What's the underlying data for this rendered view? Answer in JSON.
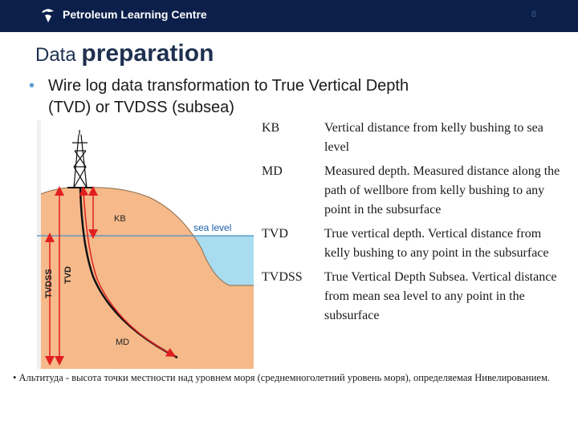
{
  "header": {
    "brand": "Petroleum Learning Centre",
    "slide_number": "8",
    "bg_color": "#0b1f4a"
  },
  "title": {
    "part1": "Data ",
    "part2": "preparation"
  },
  "bullet": {
    "line1": "Wire log data transformation to True Vertical Depth",
    "line2": "(TVD) or TVDSS (subsea)"
  },
  "diagram": {
    "sea_level_label": "sea level",
    "kb_label": "KB",
    "md_label": "MD",
    "tvdss_label": "TVDSS",
    "tvd_label": "TVD",
    "colors": {
      "land": "#f5b98a",
      "sea": "#a8dcee",
      "arrow": "#e02020",
      "wellbore": "#111111"
    }
  },
  "definitions": [
    {
      "term": "KB",
      "description": "Vertical distance from kelly bushing to sea level"
    },
    {
      "term": "MD",
      "description": "Measured depth. Measured distance along the path of wellbore from kelly bushing to any point in the subsurface"
    },
    {
      "term": "TVD",
      "description": "True vertical depth.  Vertical distance from kelly bushing to any point in the subsurface"
    },
    {
      "term": "TVDSS",
      "description": "True Vertical Depth Subsea. Vertical distance from mean sea level to any point in the subsurface"
    }
  ],
  "footnote": "• Альтитуда - высота точки местности над уровнем моря (среднемноголетний уровень моря), определяемая Нивелированием."
}
